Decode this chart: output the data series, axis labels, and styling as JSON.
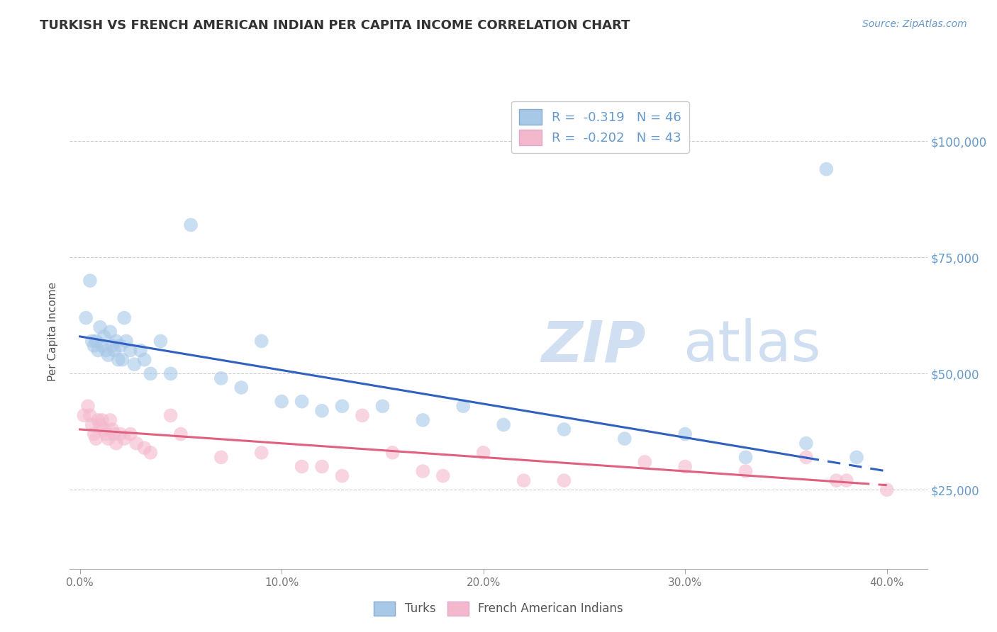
{
  "title": "TURKISH VS FRENCH AMERICAN INDIAN PER CAPITA INCOME CORRELATION CHART",
  "source": "Source: ZipAtlas.com",
  "ylabel": "Per Capita Income",
  "xlabel_ticks": [
    "0.0%",
    "10.0%",
    "20.0%",
    "30.0%",
    "40.0%"
  ],
  "xlabel_vals": [
    0.0,
    10.0,
    20.0,
    30.0,
    40.0
  ],
  "ytick_vals": [
    25000,
    50000,
    75000,
    100000
  ],
  "ytick_labels": [
    "$25,000",
    "$50,000",
    "$75,000",
    "$100,000"
  ],
  "xlim": [
    -0.5,
    42.0
  ],
  "ylim": [
    8000,
    110000
  ],
  "turks_R": -0.319,
  "turks_N": 46,
  "french_R": -0.202,
  "french_N": 43,
  "turks_color": "#a8c8e8",
  "french_color": "#f4b8cc",
  "turks_line_color": "#3060c0",
  "french_line_color": "#e06080",
  "watermark_zip_color": "#c8daf0",
  "watermark_atlas_color": "#b0c8e8",
  "background_color": "#ffffff",
  "grid_color": "#cccccc",
  "title_color": "#333333",
  "axis_label_color": "#6699cc",
  "turks_x": [
    0.3,
    0.5,
    0.6,
    0.7,
    0.8,
    0.9,
    1.0,
    1.1,
    1.2,
    1.3,
    1.4,
    1.5,
    1.6,
    1.7,
    1.8,
    1.9,
    2.0,
    2.1,
    2.2,
    2.3,
    2.5,
    2.7,
    3.0,
    3.2,
    3.5,
    4.0,
    4.5,
    5.5,
    7.0,
    8.0,
    9.0,
    10.0,
    11.0,
    12.0,
    13.0,
    15.0,
    17.0,
    19.0,
    21.0,
    24.0,
    27.0,
    30.0,
    33.0,
    36.0,
    37.0,
    38.5
  ],
  "turks_y": [
    62000,
    70000,
    57000,
    56000,
    57000,
    55000,
    60000,
    56000,
    58000,
    55000,
    54000,
    59000,
    56000,
    55000,
    57000,
    53000,
    56000,
    53000,
    62000,
    57000,
    55000,
    52000,
    55000,
    53000,
    50000,
    57000,
    50000,
    82000,
    49000,
    47000,
    57000,
    44000,
    44000,
    42000,
    43000,
    43000,
    40000,
    43000,
    39000,
    38000,
    36000,
    37000,
    32000,
    35000,
    94000,
    32000
  ],
  "french_x": [
    0.2,
    0.4,
    0.5,
    0.6,
    0.7,
    0.8,
    0.9,
    1.0,
    1.1,
    1.2,
    1.3,
    1.4,
    1.5,
    1.6,
    1.7,
    1.8,
    2.0,
    2.2,
    2.5,
    2.8,
    3.2,
    3.5,
    4.5,
    5.0,
    7.0,
    9.0,
    11.0,
    12.0,
    13.0,
    14.0,
    15.5,
    17.0,
    18.0,
    20.0,
    22.0,
    24.0,
    28.0,
    30.0,
    33.0,
    36.0,
    37.5,
    38.0,
    40.0
  ],
  "french_y": [
    41000,
    43000,
    41000,
    39000,
    37000,
    36000,
    40000,
    39000,
    40000,
    38000,
    37000,
    36000,
    40000,
    38000,
    37000,
    35000,
    37000,
    36000,
    37000,
    35000,
    34000,
    33000,
    41000,
    37000,
    32000,
    33000,
    30000,
    30000,
    28000,
    41000,
    33000,
    29000,
    28000,
    33000,
    27000,
    27000,
    31000,
    30000,
    29000,
    32000,
    27000,
    27000,
    25000
  ],
  "turks_line_x0": 0.0,
  "turks_line_x1": 40.0,
  "turks_line_y0": 58000,
  "turks_line_y1": 29000,
  "french_line_x0": 0.0,
  "french_line_x1": 40.0,
  "french_line_y0": 38000,
  "french_line_y1": 26000,
  "turks_solid_end_x": 36.0,
  "french_solid_end_x": 38.5
}
